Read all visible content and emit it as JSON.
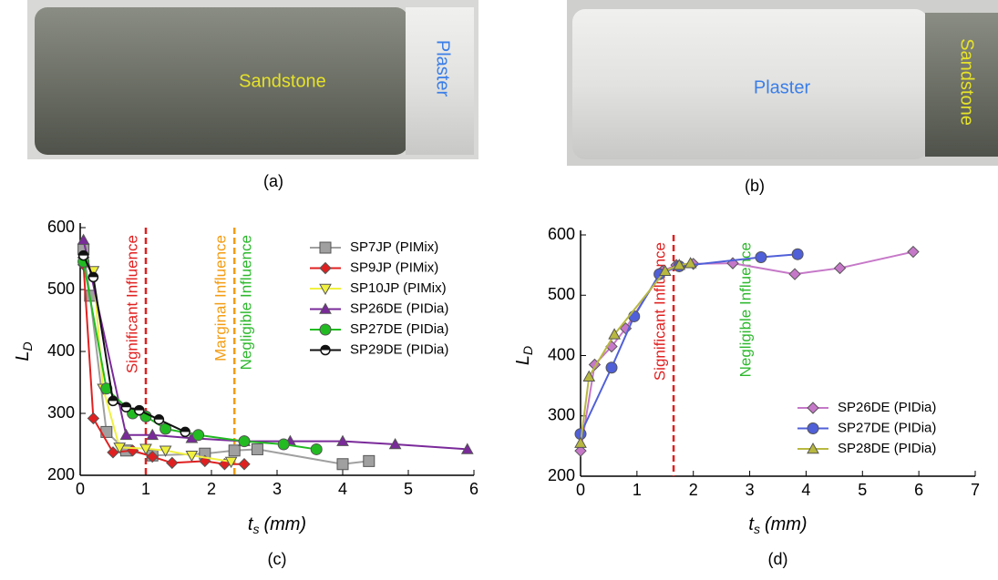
{
  "photos": [
    {
      "label": "(a)",
      "materials": [
        "Sandstone",
        "Plaster"
      ]
    },
    {
      "label": "(b)",
      "materials": [
        "Plaster",
        "Sandstone"
      ]
    }
  ],
  "chart_data": [
    {
      "type": "line",
      "label": "(c)",
      "xlabel": {
        "text": "t",
        "sub": "s",
        "unit": "(mm)"
      },
      "ylabel": {
        "text": "L",
        "sub": "D"
      },
      "xlim": [
        0,
        6
      ],
      "xticks": [
        0,
        1,
        2,
        3,
        4,
        5,
        6
      ],
      "ylim": [
        200,
        600
      ],
      "yticks": [
        200,
        300,
        400,
        500,
        600
      ],
      "legend": "upper right",
      "vlines": [
        {
          "x": 1,
          "color": "#e02020",
          "labels": [
            {
              "text": "Significant Influence",
              "side": "left",
              "color": "#e02020"
            }
          ]
        },
        {
          "x": 2.35,
          "color": "#f39c12",
          "labels": [
            {
              "text": "Marginal Influence",
              "side": "left",
              "color": "#f39c12"
            },
            {
              "text": "Negligible Influence",
              "side": "right",
              "color": "#2db82d"
            }
          ]
        }
      ],
      "series": [
        {
          "name": "SP7JP (PIMix)",
          "color": "#a0a0a0",
          "marker": "square",
          "x": [
            0.05,
            0.15,
            0.4,
            0.7,
            1.1,
            1.9,
            2.35,
            2.7,
            4.0,
            4.4
          ],
          "values": [
            565,
            490,
            270,
            240,
            232,
            235,
            240,
            242,
            218,
            223
          ]
        },
        {
          "name": "SP9JP (PIMix)",
          "color": "#e02020",
          "marker": "diamond",
          "x": [
            0.05,
            0.2,
            0.5,
            0.8,
            1.1,
            1.4,
            1.9,
            2.2,
            2.5
          ],
          "values": [
            540,
            292,
            237,
            240,
            230,
            220,
            223,
            218,
            218
          ]
        },
        {
          "name": "SP10JP (PIMix)",
          "color": "#f0f040",
          "marker": "triangle-down",
          "x": [
            0.05,
            0.2,
            0.35,
            0.6,
            1.0,
            1.3,
            1.7,
            2.3
          ],
          "values": [
            545,
            530,
            340,
            245,
            243,
            240,
            232,
            222
          ]
        },
        {
          "name": "SP26DE (PIDia)",
          "color": "#7a2a9a",
          "marker": "triangle",
          "x": [
            0.05,
            0.7,
            1.1,
            1.7,
            2.5,
            3.2,
            4.0,
            4.8,
            5.9
          ],
          "values": [
            580,
            265,
            265,
            260,
            255,
            255,
            255,
            250,
            242
          ]
        },
        {
          "name": "SP27DE (PIDia)",
          "color": "#22bb22",
          "marker": "circle",
          "x": [
            0.05,
            0.4,
            0.8,
            1.0,
            1.3,
            1.8,
            2.5,
            3.1,
            3.6
          ],
          "values": [
            545,
            340,
            300,
            295,
            275,
            265,
            255,
            250,
            242
          ]
        },
        {
          "name": "SP29DE (PIDia)",
          "color": "#111111",
          "marker": "half-circle",
          "x": [
            0.05,
            0.2,
            0.5,
            0.7,
            0.9,
            1.2,
            1.6
          ],
          "values": [
            555,
            520,
            320,
            310,
            305,
            290,
            270
          ]
        }
      ]
    },
    {
      "type": "line",
      "label": "(d)",
      "xlabel": {
        "text": "t",
        "sub": "s",
        "unit": "(mm)"
      },
      "ylabel": {
        "text": "L",
        "sub": "D"
      },
      "xlim": [
        0,
        7
      ],
      "xticks": [
        0,
        1,
        2,
        3,
        4,
        5,
        6,
        7
      ],
      "ylim": [
        200,
        600
      ],
      "yticks": [
        200,
        300,
        400,
        500,
        600
      ],
      "legend": "lower right",
      "vlines": [
        {
          "x": 1.65,
          "color": "#e02020",
          "labels": [
            {
              "text": "Significant Influence",
              "side": "left",
              "color": "#e02020"
            },
            {
              "text": "Negligible Influence",
              "side": "far-right",
              "color": "#2db82d"
            }
          ]
        }
      ],
      "series": [
        {
          "name": "SP26DE (PIDia)",
          "color": "#c678c8",
          "marker": "diamond",
          "x": [
            0,
            0.25,
            0.55,
            0.8,
            1.45,
            1.7,
            2.0,
            2.7,
            3.8,
            4.6,
            5.9
          ],
          "values": [
            242,
            385,
            415,
            445,
            540,
            550,
            552,
            553,
            535,
            545,
            572
          ]
        },
        {
          "name": "SP27DE (PIDia)",
          "color": "#5060d8",
          "marker": "circle",
          "x": [
            0,
            0.55,
            0.95,
            1.4,
            1.75,
            3.2,
            3.85
          ],
          "values": [
            270,
            380,
            465,
            535,
            548,
            563,
            568
          ]
        },
        {
          "name": "SP28DE (PIDia)",
          "color": "#b8b840",
          "marker": "triangle",
          "x": [
            0,
            0.15,
            0.6,
            1.5,
            1.75,
            1.95
          ],
          "values": [
            255,
            365,
            435,
            540,
            550,
            553
          ]
        }
      ]
    }
  ]
}
